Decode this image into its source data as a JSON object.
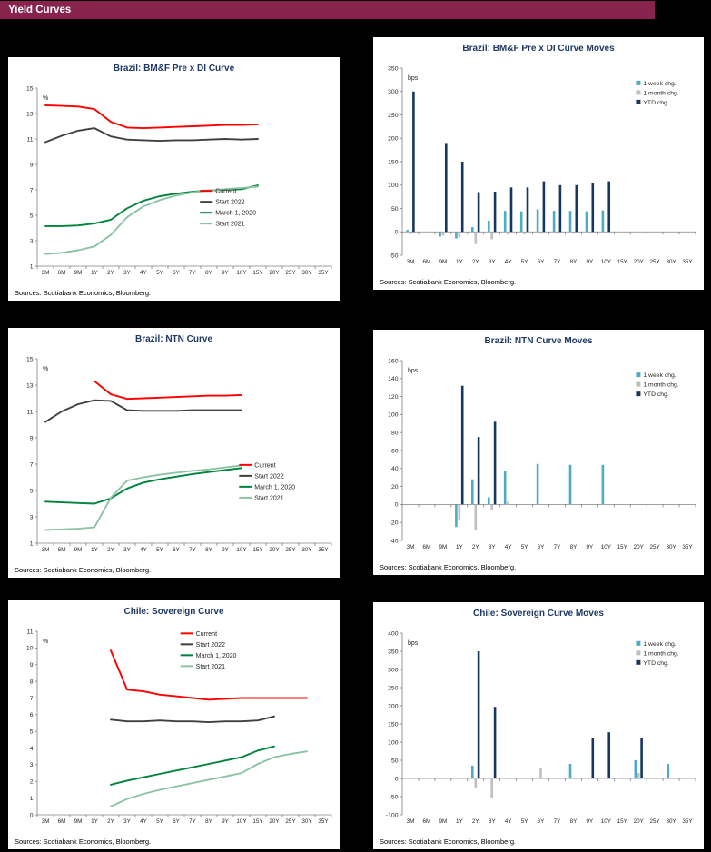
{
  "header": {
    "title": "Yield Curves"
  },
  "palette": {
    "header_bar": "#87234C",
    "title_navy": "#1F3864",
    "axis_gray": "#808080",
    "current_red": "#FF0000",
    "start2022_gray": "#404040",
    "mar2020_green": "#00843D",
    "start2021_green": "#8CC3A5",
    "week_blue": "#4BACC6",
    "month_gray": "#BFBFBF",
    "ytd_navy": "#17375E"
  },
  "chart_data": [
    {
      "id": "brazil-bmf-curve",
      "type": "line",
      "title": "Brazil: BM&F Pre x DI Curve",
      "unit": "%",
      "ylim": [
        1,
        15
      ],
      "ystep": 2,
      "legend_pos": [
        0.58,
        0.53
      ],
      "sources": "Sources: Scotiabank Economics, Bloomberg.",
      "categories": [
        "3M",
        "6M",
        "9M",
        "1Y",
        "2Y",
        "3Y",
        "4Y",
        "5Y",
        "6Y",
        "7Y",
        "8Y",
        "9Y",
        "10Y",
        "15Y",
        "20Y",
        "25Y",
        "30Y",
        "35Y"
      ],
      "series": [
        {
          "name": "Current",
          "color": "#FF0000",
          "values": [
            13.65,
            13.6,
            13.55,
            13.35,
            12.35,
            11.9,
            11.85,
            11.9,
            11.95,
            12.0,
            12.05,
            12.1,
            12.1,
            12.15,
            null,
            null,
            null,
            null
          ]
        },
        {
          "name": "Start 2022",
          "color": "#404040",
          "values": [
            10.75,
            11.25,
            11.65,
            11.85,
            11.2,
            10.95,
            10.9,
            10.85,
            10.9,
            10.9,
            10.95,
            11.0,
            10.95,
            11.0,
            null,
            null,
            null,
            null
          ]
        },
        {
          "name": "March 1, 2020",
          "color": "#00843D",
          "values": [
            4.15,
            4.15,
            4.2,
            4.35,
            4.65,
            5.55,
            6.15,
            6.5,
            6.7,
            6.85,
            6.95,
            7.0,
            7.05,
            7.35,
            null,
            null,
            null,
            null
          ]
        },
        {
          "name": "Start 2021",
          "color": "#8CC3A5",
          "values": [
            1.95,
            2.05,
            2.25,
            2.55,
            3.45,
            4.85,
            5.7,
            6.2,
            6.55,
            6.8,
            6.95,
            7.05,
            7.15,
            7.25,
            null,
            null,
            null,
            null
          ]
        }
      ]
    },
    {
      "id": "brazil-bmf-curve-moves",
      "type": "bar",
      "title": "Brazil: BM&F Pre x DI Curve Moves",
      "unit": "bps",
      "ylim": [
        -50,
        350
      ],
      "ystep": 50,
      "legend_pos": [
        0.8,
        0.09
      ],
      "sources": "Sources: Scotiabank Economics, Bloomberg.",
      "categories": [
        "3M",
        "6M",
        "9M",
        "1Y",
        "2Y",
        "3Y",
        "4Y",
        "5Y",
        "6Y",
        "7Y",
        "8Y",
        "9Y",
        "10Y",
        "15Y",
        "20Y",
        "25Y",
        "30Y",
        "35Y"
      ],
      "series": [
        {
          "name": "1 week chg.",
          "color": "#4BACC6",
          "values": [
            4,
            null,
            -10,
            -14,
            10,
            24,
            45,
            44,
            48,
            45,
            45,
            44,
            46,
            null,
            null,
            null,
            null,
            null
          ]
        },
        {
          "name": "1 month chg.",
          "color": "#BFBFBF",
          "values": [
            -5,
            null,
            -8,
            -12,
            -26,
            -16,
            -6,
            -5,
            -4,
            -4,
            -4,
            -3,
            -3,
            null,
            null,
            null,
            null,
            null
          ]
        },
        {
          "name": "YTD chg.",
          "color": "#17375E",
          "values": [
            300,
            null,
            190,
            150,
            85,
            86,
            95,
            95,
            108,
            100,
            100,
            104,
            108,
            null,
            null,
            null,
            null,
            null
          ]
        }
      ]
    },
    {
      "id": "brazil-ntn-curve",
      "type": "line",
      "title": "Brazil: NTN Curve",
      "unit": "%",
      "ylim": [
        1,
        15
      ],
      "ystep": 2,
      "legend_pos": [
        0.7,
        0.53
      ],
      "sources": "Sources: Scotiabank Economics, Bloomberg.",
      "categories": [
        "3M",
        "6M",
        "9M",
        "1Y",
        "2Y",
        "3Y",
        "4Y",
        "5Y",
        "6Y",
        "7Y",
        "8Y",
        "9Y",
        "10Y",
        "15Y",
        "20Y",
        "25Y",
        "30Y",
        "35Y"
      ],
      "series": [
        {
          "name": "Current",
          "color": "#FF0000",
          "values": [
            null,
            null,
            null,
            13.3,
            12.3,
            11.95,
            12.0,
            12.05,
            12.1,
            12.15,
            12.2,
            12.2,
            12.25,
            null,
            null,
            null,
            null,
            null
          ]
        },
        {
          "name": "Start 2022",
          "color": "#404040",
          "values": [
            10.2,
            11.0,
            11.55,
            11.85,
            11.8,
            11.1,
            11.05,
            11.05,
            11.05,
            11.1,
            11.1,
            11.1,
            11.1,
            null,
            null,
            null,
            null,
            null
          ]
        },
        {
          "name": "March 1, 2020",
          "color": "#00843D",
          "values": [
            4.15,
            4.1,
            4.05,
            4.0,
            4.4,
            5.15,
            5.6,
            5.85,
            6.05,
            6.25,
            6.4,
            6.55,
            6.7,
            null,
            null,
            null,
            null,
            null
          ]
        },
        {
          "name": "Start 2021",
          "color": "#8CC3A5",
          "values": [
            2.0,
            2.05,
            2.1,
            2.2,
            4.45,
            5.75,
            6.0,
            6.2,
            6.35,
            6.5,
            6.6,
            6.75,
            6.9,
            null,
            null,
            null,
            null,
            null
          ]
        }
      ]
    },
    {
      "id": "brazil-ntn-curve-moves",
      "type": "bar",
      "title": "Brazil: NTN Curve Moves",
      "unit": "bps",
      "ylim": [
        -40,
        160
      ],
      "ystep": 20,
      "legend_pos": [
        0.8,
        0.09
      ],
      "sources": "Sources: Scotiabank Economics, Bloomberg.",
      "categories": [
        "3M",
        "6M",
        "9M",
        "1Y",
        "2Y",
        "3Y",
        "4Y",
        "5Y",
        "6Y",
        "7Y",
        "8Y",
        "9Y",
        "10Y",
        "15Y",
        "20Y",
        "25Y",
        "30Y",
        "35Y"
      ],
      "series": [
        {
          "name": "1 week chg.",
          "color": "#4BACC6",
          "values": [
            null,
            null,
            null,
            -25,
            28,
            8,
            37,
            null,
            45,
            null,
            44,
            null,
            44,
            null,
            null,
            null,
            null,
            null
          ]
        },
        {
          "name": "1 month chg.",
          "color": "#BFBFBF",
          "values": [
            null,
            null,
            null,
            -18,
            -28,
            -6,
            3,
            null,
            null,
            null,
            null,
            null,
            null,
            null,
            null,
            null,
            null,
            null
          ]
        },
        {
          "name": "YTD chg.",
          "color": "#17375E",
          "values": [
            null,
            null,
            null,
            132,
            75,
            92,
            null,
            null,
            null,
            null,
            null,
            null,
            null,
            null,
            null,
            null,
            null,
            null
          ]
        }
      ]
    },
    {
      "id": "chile-sovereign-curve",
      "type": "line",
      "title": "Chile: Sovereign Curve",
      "unit": "%",
      "ylim": [
        0,
        11
      ],
      "ystep": 1,
      "legend_pos": [
        0.52,
        0.03
      ],
      "sources": "Sources: Scotiabank Economics, Bloomberg.",
      "categories": [
        "3M",
        "6M",
        "9M",
        "1Y",
        "2Y",
        "3Y",
        "4Y",
        "5Y",
        "6Y",
        "7Y",
        "8Y",
        "9Y",
        "10Y",
        "15Y",
        "20Y",
        "25Y",
        "30Y",
        "35Y"
      ],
      "series": [
        {
          "name": "Current",
          "color": "#FF0000",
          "values": [
            null,
            null,
            null,
            null,
            9.85,
            7.5,
            7.4,
            7.2,
            7.1,
            7.0,
            6.9,
            6.95,
            7.0,
            7.0,
            7.0,
            7.0,
            7.0,
            null
          ]
        },
        {
          "name": "Start 2022",
          "color": "#404040",
          "values": [
            null,
            null,
            null,
            null,
            5.7,
            5.6,
            5.6,
            5.65,
            5.6,
            5.6,
            5.55,
            5.6,
            5.6,
            5.65,
            5.9,
            null,
            null,
            null
          ]
        },
        {
          "name": "March 1, 2020",
          "color": "#00843D",
          "values": [
            null,
            null,
            null,
            null,
            1.8,
            2.05,
            2.25,
            2.45,
            2.65,
            2.85,
            3.05,
            3.25,
            3.45,
            3.85,
            4.1,
            null,
            null,
            null
          ]
        },
        {
          "name": "Start 2021",
          "color": "#8CC3A5",
          "values": [
            null,
            null,
            null,
            null,
            0.5,
            0.95,
            1.25,
            1.5,
            1.7,
            1.9,
            2.1,
            2.3,
            2.5,
            3.05,
            3.45,
            3.65,
            3.8,
            null
          ]
        }
      ]
    },
    {
      "id": "chile-sovereign-curve-moves",
      "type": "bar",
      "title": "Chile: Sovereign Curve Moves",
      "unit": "bps",
      "ylim": [
        -100,
        400
      ],
      "ystep": 50,
      "legend_pos": [
        0.8,
        0.07
      ],
      "sources": "Sources: Scotiabank Economics, Bloomberg.",
      "categories": [
        "3M",
        "6M",
        "9M",
        "1Y",
        "2Y",
        "3Y",
        "4Y",
        "5Y",
        "6Y",
        "7Y",
        "8Y",
        "9Y",
        "10Y",
        "15Y",
        "20Y",
        "25Y",
        "30Y",
        "35Y"
      ],
      "series": [
        {
          "name": "1 week chg.",
          "color": "#4BACC6",
          "values": [
            null,
            null,
            null,
            null,
            35,
            null,
            null,
            null,
            null,
            null,
            40,
            null,
            null,
            null,
            50,
            null,
            40,
            null
          ]
        },
        {
          "name": "1 month chg.",
          "color": "#BFBFBF",
          "values": [
            null,
            null,
            null,
            null,
            -25,
            -55,
            null,
            null,
            30,
            null,
            null,
            null,
            null,
            null,
            15,
            null,
            null,
            null
          ]
        },
        {
          "name": "YTD chg.",
          "color": "#17375E",
          "values": [
            null,
            null,
            null,
            null,
            350,
            197,
            null,
            null,
            null,
            null,
            null,
            110,
            127,
            null,
            110,
            null,
            null,
            null
          ]
        }
      ]
    }
  ]
}
